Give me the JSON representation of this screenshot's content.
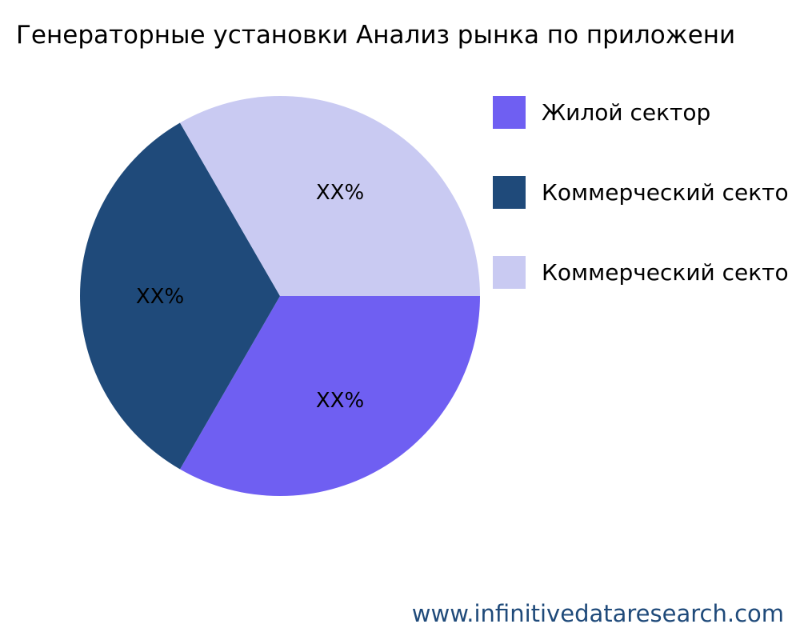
{
  "chart_data": {
    "type": "pie",
    "title": "Генераторные установки Анализ рынка по приложени",
    "slices": [
      {
        "label": "Жилой сектор",
        "value": 33.33,
        "data_label": "XX%",
        "color": "#6f5ff2"
      },
      {
        "label": "Коммерческий секто",
        "value": 33.33,
        "data_label": "XX%",
        "color": "#1f4a7a"
      },
      {
        "label": "Коммерческий секто",
        "value": 33.33,
        "data_label": "XX%",
        "color": "#c9caf2"
      }
    ],
    "start_angle_deg": 0,
    "direction": "clockwise",
    "legend_position": "right"
  },
  "footer": "www.infinitivedataresearch.com"
}
